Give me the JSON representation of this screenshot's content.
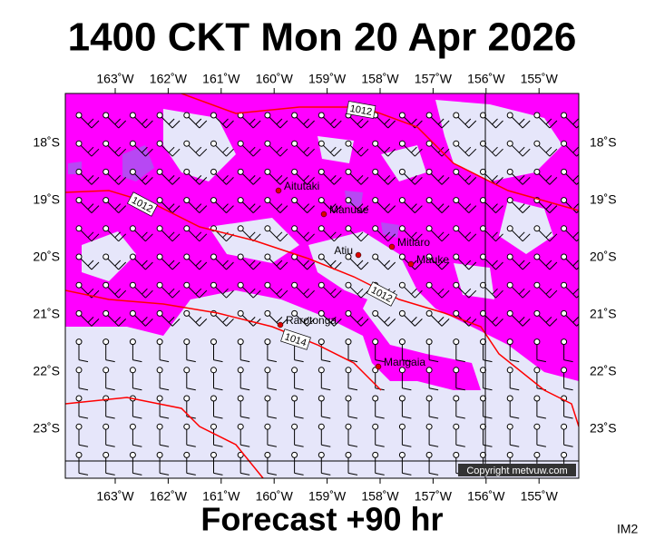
{
  "header": {
    "title": "1400 CKT Mon 20 Apr 2026"
  },
  "map": {
    "lon_labels": [
      "163˚W",
      "162˚W",
      "161˚W",
      "160˚W",
      "159˚W",
      "158˚W",
      "157˚W",
      "156˚W",
      "155˚W"
    ],
    "lat_labels": [
      "18˚S",
      "19˚S",
      "20˚S",
      "21˚S",
      "22˚S",
      "23˚S"
    ],
    "places": [
      "Aitutaki",
      "Manuae",
      "Atiu",
      "Mitiaro",
      "Mauke",
      "Rarotonga",
      "Mangaia"
    ],
    "isobar_labels": [
      "1012",
      "1012",
      "1012",
      "1014"
    ],
    "copyright": "Copyright metvuw.com"
  },
  "footer": {
    "forecast": "Forecast +90 hr",
    "code": "IM2"
  }
}
